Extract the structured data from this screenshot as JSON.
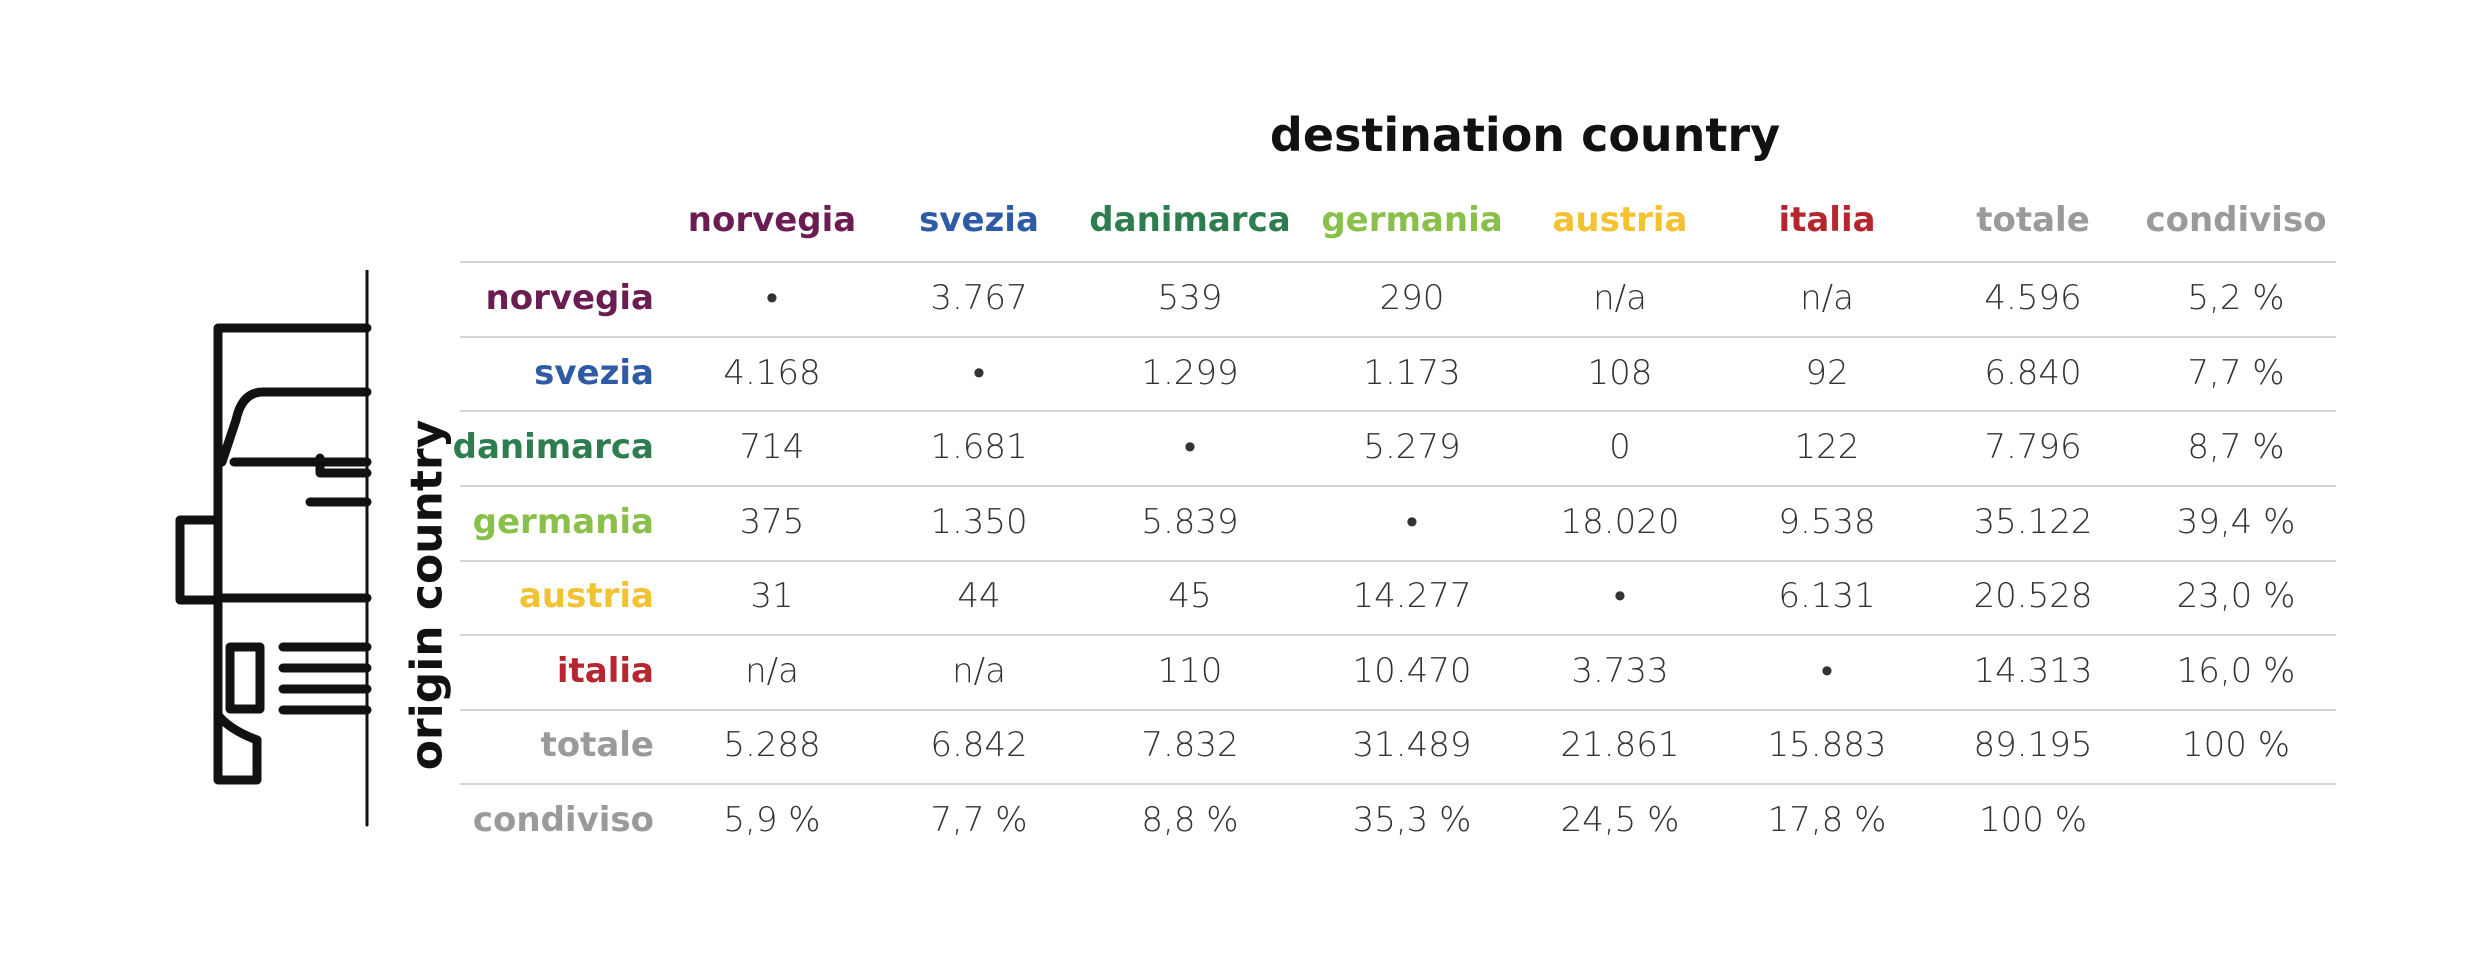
{
  "title": "destination country",
  "vaxis_label": "origin country",
  "icon": "truck-icon",
  "colors": {
    "norvegia": "#6b1d52",
    "svezia": "#2e5aa6",
    "danimarca": "#2e7d4f",
    "germania": "#8ac049",
    "austria": "#f2c232",
    "italia": "#b5262e",
    "totale": "#9a9a9a",
    "condiviso": "#9a9a9a"
  },
  "chart_data": {
    "type": "table",
    "title": "destination country",
    "row_axis_label": "origin country",
    "columns": [
      "norvegia",
      "svezia",
      "danimarca",
      "germania",
      "austria",
      "italia",
      "totale",
      "condiviso"
    ],
    "rows": [
      {
        "label": "norvegia",
        "cells": [
          "•",
          "3.767",
          "539",
          "290",
          "n/a",
          "n/a",
          "4.596",
          "5,2 %"
        ]
      },
      {
        "label": "svezia",
        "cells": [
          "4.168",
          "•",
          "1.299",
          "1.173",
          "108",
          "92",
          "6.840",
          "7,7 %"
        ]
      },
      {
        "label": "danimarca",
        "cells": [
          "714",
          "1.681",
          "•",
          "5.279",
          "0",
          "122",
          "7.796",
          "8,7 %"
        ]
      },
      {
        "label": "germania",
        "cells": [
          "375",
          "1.350",
          "5.839",
          "•",
          "18.020",
          "9.538",
          "35.122",
          "39,4 %"
        ]
      },
      {
        "label": "austria",
        "cells": [
          "31",
          "44",
          "45",
          "14.277",
          "•",
          "6.131",
          "20.528",
          "23,0 %"
        ]
      },
      {
        "label": "italia",
        "cells": [
          "n/a",
          "n/a",
          "110",
          "10.470",
          "3.733",
          "•",
          "14.313",
          "16,0 %"
        ]
      },
      {
        "label": "totale",
        "cells": [
          "5.288",
          "6.842",
          "7.832",
          "31.489",
          "21.861",
          "15.883",
          "89.195",
          "100 %"
        ]
      },
      {
        "label": "condiviso",
        "cells": [
          "5,9 %",
          "7,7 %",
          "8,8 %",
          "35,3 %",
          "24,5 %",
          "17,8 %",
          "100 %",
          ""
        ]
      }
    ]
  }
}
